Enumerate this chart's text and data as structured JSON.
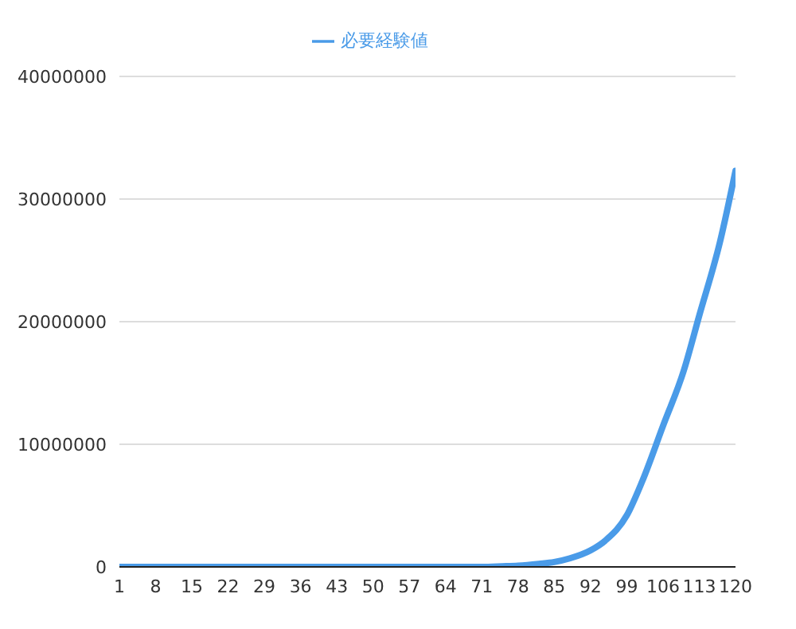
{
  "chart_data": {
    "type": "line",
    "x": [
      1,
      10,
      20,
      30,
      40,
      50,
      60,
      71,
      75,
      78,
      82,
      85,
      88,
      92,
      95,
      99,
      102,
      106,
      110,
      113,
      117,
      120
    ],
    "series": [
      {
        "name": "必要経験値",
        "color": "#4a9be8",
        "values": [
          0,
          0,
          0,
          0,
          0,
          0,
          0,
          0,
          50000,
          100000,
          250000,
          400000,
          700000,
          1350000,
          2200000,
          4200000,
          7000000,
          11500000,
          16000000,
          20500000,
          26500000,
          32300000
        ]
      }
    ],
    "xlim": [
      1,
      120
    ],
    "xticks": [
      1,
      8,
      15,
      22,
      29,
      36,
      43,
      50,
      57,
      64,
      71,
      78,
      85,
      92,
      99,
      106,
      113,
      120
    ],
    "ylim": [
      0,
      40000000
    ],
    "yticks": [
      0,
      10000000,
      20000000,
      30000000,
      40000000
    ],
    "grid": "y",
    "legend": "top",
    "marker": "none",
    "line_style": "solid"
  }
}
